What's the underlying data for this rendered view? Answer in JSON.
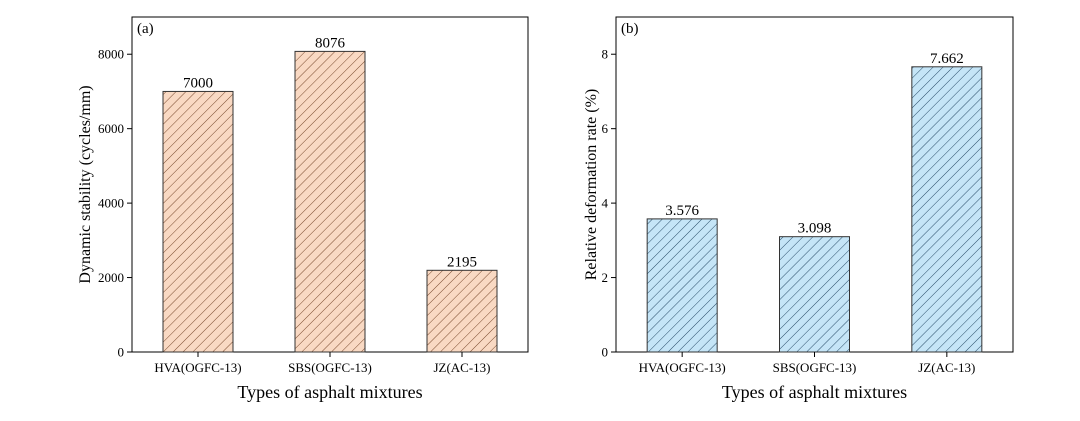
{
  "chart_data": [
    {
      "type": "bar",
      "panel_label": "(a)",
      "categories": [
        "HVA(OGFC-13)",
        "SBS(OGFC-13)",
        "JZ(AC-13)"
      ],
      "values": [
        7000,
        8076,
        2195
      ],
      "value_labels": [
        "7000",
        "8076",
        "2195"
      ],
      "xlabel": "Types of asphalt mixtures",
      "ylabel": "Dynamic stability (cycles/mm)",
      "ylim": [
        0,
        9000
      ],
      "yticks": [
        0,
        2000,
        4000,
        6000,
        8000
      ],
      "ytick_labels": [
        "0",
        "2000",
        "4000",
        "6000",
        "8000"
      ],
      "bar_fill": "#f9d9c3",
      "hatch_color": "#7a4a2e",
      "grid": false
    },
    {
      "type": "bar",
      "panel_label": "(b)",
      "categories": [
        "HVA(OGFC-13)",
        "SBS(OGFC-13)",
        "JZ(AC-13)"
      ],
      "values": [
        3.576,
        3.098,
        7.662
      ],
      "value_labels": [
        "3.576",
        "3.098",
        "7.662"
      ],
      "xlabel": "Types of asphalt mixtures",
      "ylabel": "Relative deformation rate (%)",
      "ylim": [
        0,
        9
      ],
      "yticks": [
        0,
        2,
        4,
        6,
        8
      ],
      "ytick_labels": [
        "0",
        "2",
        "4",
        "6",
        "8"
      ],
      "bar_fill": "#c5e5f7",
      "hatch_color": "#2a4e6a",
      "grid": false
    }
  ]
}
